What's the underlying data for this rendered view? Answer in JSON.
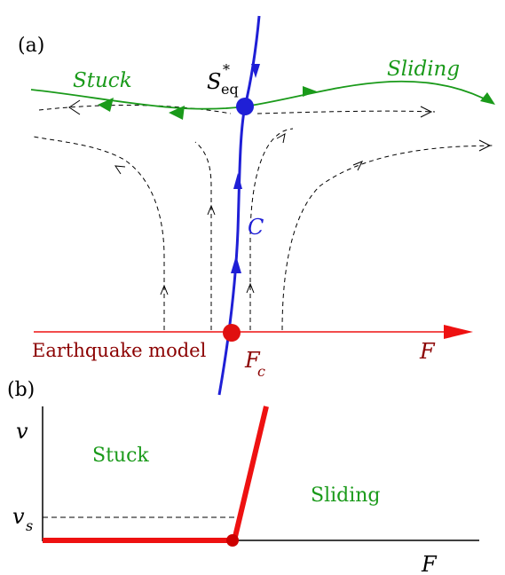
{
  "panel_a": {
    "label": "(a)",
    "stuck_label": "Stuck",
    "sliding_label": "Sliding",
    "fixed_point": {
      "symbol": "S",
      "superscript": "*",
      "subscript": "eq"
    },
    "curve_label": "C",
    "earthquake_label": "Earthquake model",
    "axis_label": "F",
    "critical_point": {
      "symbol": "F",
      "subscript": "c"
    }
  },
  "panel_b": {
    "label": "(b)",
    "y_axis_label": "v",
    "x_axis_label": "F",
    "vs_label": {
      "symbol": "v",
      "subscript": "s"
    },
    "stuck_label": "Stuck",
    "sliding_label": "Sliding"
  },
  "colors": {
    "green": "#1a9a1a",
    "blue": "#1f1fd6",
    "red": "#ee1111",
    "dark_red": "#8b0000",
    "black": "#000000"
  }
}
